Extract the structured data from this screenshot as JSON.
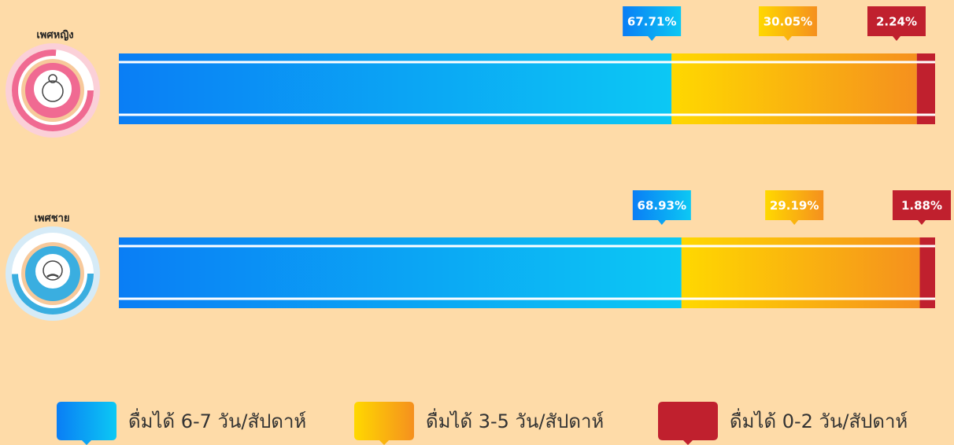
{
  "chart_data": {
    "type": "bar",
    "orientation": "horizontal",
    "stacked": true,
    "categories": [
      "เพศหญิง",
      "เพศชาย"
    ],
    "series": [
      {
        "name": "ดื่มได้ 6-7 วัน/สัปดาห์",
        "color": [
          "#0a7ef5",
          "#0cc8f4"
        ],
        "values": [
          67.71,
          68.93
        ],
        "value_labels": [
          "67.71%",
          "68.93%"
        ]
      },
      {
        "name": "ดื่มได้ 3-5 วัน/สัปดาห์",
        "color": [
          "#ffd800",
          "#f5901e"
        ],
        "values": [
          30.05,
          29.19
        ],
        "value_labels": [
          "30.05%",
          "29.19%"
        ]
      },
      {
        "name": "ดื่มได้ 0-2 วัน/สัปดาห์",
        "color": [
          "#c0202e",
          "#c0202e"
        ],
        "values": [
          2.24,
          1.88
        ],
        "value_labels": [
          "2.24%",
          "1.88%"
        ]
      }
    ]
  }
}
